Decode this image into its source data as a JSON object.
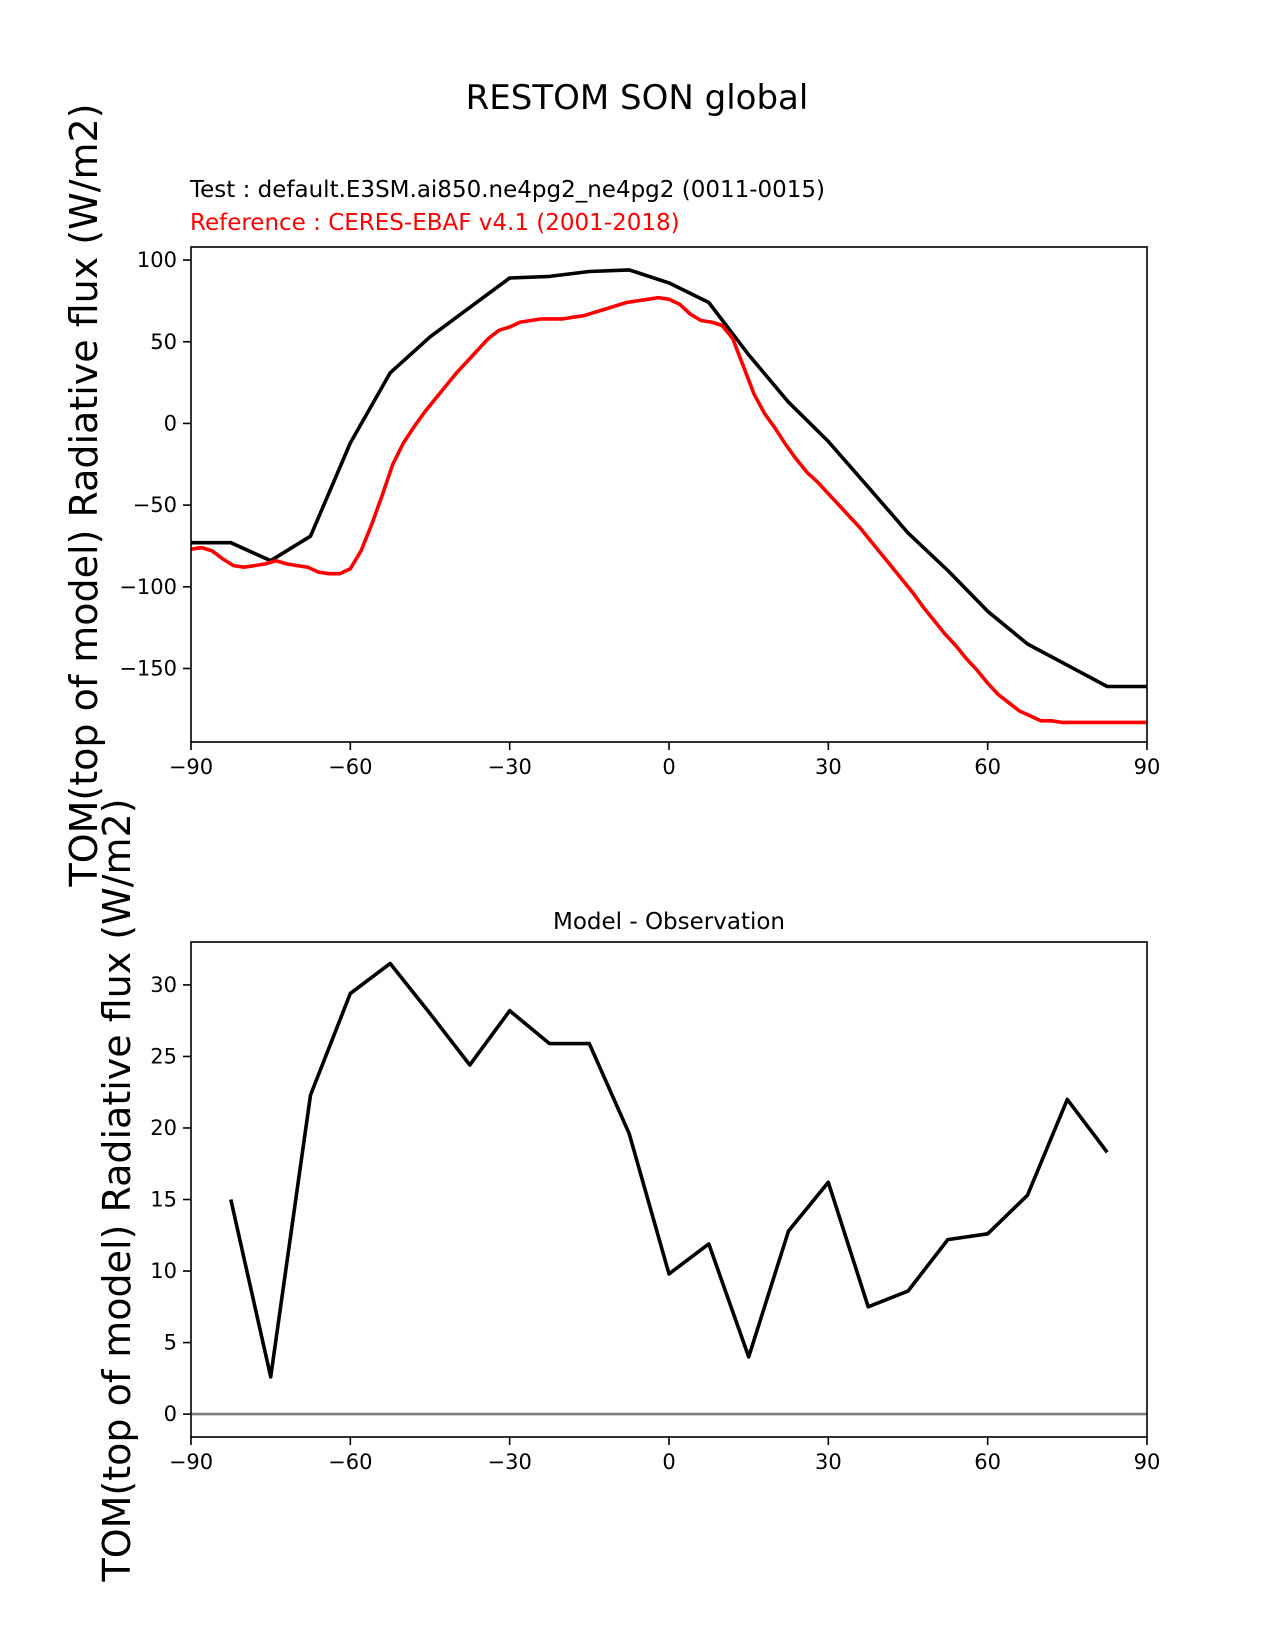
{
  "figure": {
    "title": "RESTOM SON global",
    "test_label": "Test : default.E3SM.ai850.ne4pg2_ne4pg2 (0011-0015)",
    "reference_label": "Reference : CERES-EBAF v4.1 (2001-2018)",
    "ylabel": "TOM(top of model) Radiative flux (W/m2)"
  },
  "chart_data": [
    {
      "type": "line",
      "title": "",
      "xlabel": "",
      "ylabel": "TOM(top of model) Radiative flux (W/m2)",
      "xlim": [
        -90,
        90
      ],
      "ylim": [
        -195,
        108
      ],
      "xticks": [
        -90,
        -60,
        -30,
        0,
        30,
        60,
        90
      ],
      "xtick_labels": [
        "−90",
        "−60",
        "−30",
        "0",
        "30",
        "60",
        "90"
      ],
      "yticks": [
        100,
        50,
        0,
        -50,
        -100,
        -150
      ],
      "ytick_labels": [
        "100",
        "50",
        "0",
        "−50",
        "−100",
        "−150"
      ],
      "series": [
        {
          "name": "Test : default.E3SM.ai850.ne4pg2_ne4pg2 (0011-0015)",
          "color": "#000000",
          "x": [
            -90,
            -82.5,
            -75,
            -67.5,
            -60,
            -52.5,
            -45,
            -37.5,
            -30,
            -22.5,
            -15,
            -7.5,
            0,
            7.5,
            15,
            22.5,
            30,
            37.5,
            45,
            52.5,
            60,
            67.5,
            75,
            82.5,
            90
          ],
          "y": [
            -73,
            -73,
            -84,
            -69,
            -12,
            31,
            53,
            71,
            89,
            90,
            93,
            94,
            86,
            74,
            42,
            13,
            -11,
            -39,
            -67,
            -90,
            -115,
            -135,
            -148,
            -161,
            -161
          ]
        },
        {
          "name": "Reference : CERES-EBAF v4.1 (2001-2018)",
          "color": "#ff0000",
          "x": [
            -90,
            -88,
            -86,
            -84,
            -82,
            -80,
            -78,
            -76,
            -74,
            -72,
            -70,
            -68,
            -66,
            -64,
            -62,
            -60,
            -58,
            -56,
            -54,
            -52,
            -50,
            -48,
            -46,
            -44,
            -42,
            -40,
            -38,
            -36,
            -34,
            -32,
            -30,
            -28,
            -26,
            -24,
            -22,
            -20,
            -18,
            -16,
            -14,
            -12,
            -10,
            -8,
            -6,
            -4,
            -2,
            0,
            2,
            4,
            6,
            8,
            10,
            12,
            14,
            16,
            18,
            20,
            22,
            24,
            26,
            28,
            30,
            32,
            34,
            36,
            38,
            40,
            42,
            44,
            46,
            48,
            50,
            52,
            54,
            56,
            58,
            60,
            62,
            64,
            66,
            68,
            70,
            72,
            74,
            76,
            78,
            80,
            82,
            84,
            86,
            88,
            90
          ],
          "y": [
            -77,
            -76,
            -78,
            -83,
            -87,
            -88,
            -87,
            -86,
            -84,
            -86,
            -87,
            -88,
            -91,
            -92,
            -92,
            -89,
            -78,
            -62,
            -44,
            -25,
            -12,
            -2,
            7,
            15,
            23,
            31,
            38,
            45,
            52,
            57,
            59,
            62,
            63,
            64,
            64,
            64,
            65,
            66,
            68,
            70,
            72,
            74,
            75,
            76,
            77,
            76,
            73,
            67,
            63,
            62,
            60,
            52,
            35,
            18,
            6,
            -3,
            -13,
            -22,
            -30,
            -36,
            -43,
            -50,
            -57,
            -64,
            -72,
            -80,
            -88,
            -96,
            -104,
            -113,
            -121,
            -129,
            -136,
            -144,
            -151,
            -159,
            -166,
            -171,
            -176,
            -179,
            -182,
            -182,
            -183,
            -183,
            -183,
            -183,
            -183,
            -183,
            -183,
            -183,
            -183
          ]
        }
      ]
    },
    {
      "type": "line",
      "title": "Model - Observation",
      "xlabel": "",
      "ylabel": "TOM(top of model) Radiative flux (W/m2)",
      "xlim": [
        -90,
        90
      ],
      "ylim": [
        -1.6,
        33
      ],
      "xticks": [
        -90,
        -60,
        -30,
        0,
        30,
        60,
        90
      ],
      "xtick_labels": [
        "−90",
        "−60",
        "−30",
        "0",
        "30",
        "60",
        "90"
      ],
      "yticks": [
        30,
        25,
        20,
        15,
        10,
        5,
        0
      ],
      "ytick_labels": [
        "30",
        "25",
        "20",
        "15",
        "10",
        "5",
        "0"
      ],
      "reference_line": {
        "y": 0,
        "color": "#808080"
      },
      "series": [
        {
          "name": "Model - Observation",
          "color": "#000000",
          "x": [
            -82.5,
            -75,
            -67.5,
            -60,
            -52.5,
            -45,
            -37.5,
            -30,
            -22.5,
            -15,
            -7.5,
            0,
            7.5,
            15,
            22.5,
            30,
            37.5,
            45,
            52.5,
            60,
            67.5,
            75,
            82.5
          ],
          "y": [
            15.0,
            2.6,
            22.3,
            29.4,
            31.5,
            28.0,
            24.4,
            28.2,
            25.9,
            25.9,
            19.6,
            9.8,
            11.9,
            4.0,
            12.8,
            16.2,
            7.5,
            8.6,
            12.2,
            12.6,
            15.3,
            22.0,
            18.3
          ]
        }
      ]
    }
  ]
}
